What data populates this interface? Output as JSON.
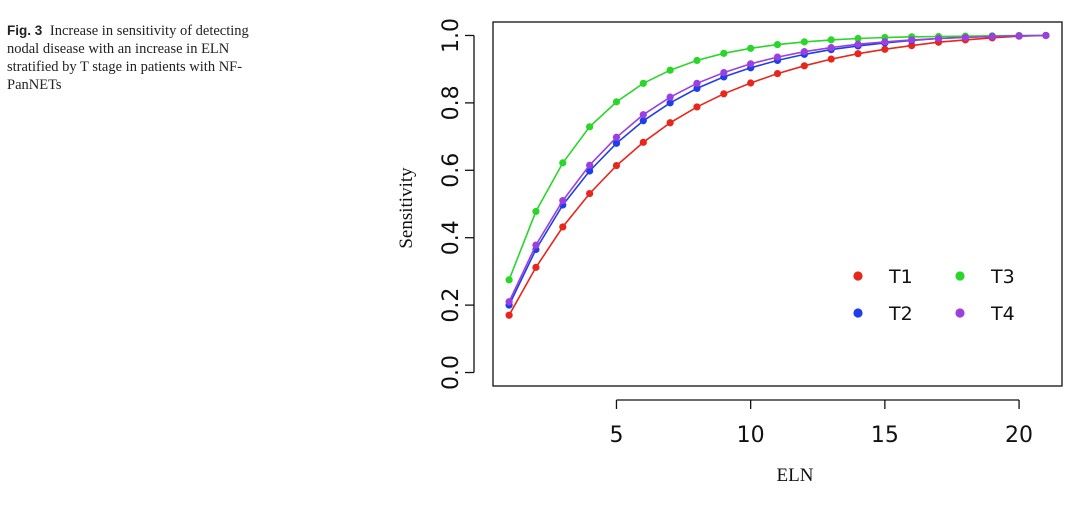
{
  "caption": {
    "label": "Fig. 3",
    "text": "Increase in sensitivity of detecting nodal disease with an increase in ELN stratified by T stage in patients with NF-PanNETs"
  },
  "chart_data": {
    "type": "line",
    "title": "",
    "xlabel": "ELN",
    "ylabel": "Sensitivity",
    "xlim": [
      0.4,
      21.6
    ],
    "ylim": [
      -0.04,
      1.04
    ],
    "xticks": [
      5,
      10,
      15,
      20
    ],
    "yticks": [
      0.0,
      0.2,
      0.4,
      0.6,
      0.8,
      1.0
    ],
    "ytick_labels": [
      "0.0",
      "0.2",
      "0.4",
      "0.6",
      "0.8",
      "1.0"
    ],
    "grid": false,
    "legend_position": "bottom-right",
    "x": [
      1,
      2,
      3,
      4,
      5,
      6,
      7,
      8,
      9,
      10,
      11,
      12,
      13,
      14,
      15,
      16,
      17,
      18,
      19,
      20,
      21
    ],
    "series": [
      {
        "name": "T1",
        "color": "#e8261b",
        "values": [
          0.17,
          0.312,
          0.432,
          0.531,
          0.614,
          0.683,
          0.741,
          0.788,
          0.827,
          0.859,
          0.887,
          0.91,
          0.93,
          0.946,
          0.959,
          0.97,
          0.98,
          0.987,
          0.993,
          0.998,
          1.0
        ]
      },
      {
        "name": "T2",
        "color": "#1f3ee8",
        "values": [
          0.2,
          0.365,
          0.497,
          0.598,
          0.68,
          0.747,
          0.8,
          0.843,
          0.877,
          0.904,
          0.926,
          0.944,
          0.958,
          0.969,
          0.978,
          0.985,
          0.991,
          0.995,
          0.998,
          0.999,
          1.0
        ]
      },
      {
        "name": "T3",
        "color": "#2ad62a",
        "values": [
          0.275,
          0.478,
          0.622,
          0.729,
          0.803,
          0.858,
          0.897,
          0.926,
          0.947,
          0.962,
          0.973,
          0.981,
          0.987,
          0.991,
          0.994,
          0.996,
          0.997,
          0.998,
          0.999,
          1.0,
          1.0
        ]
      },
      {
        "name": "T4",
        "color": "#9b3fe0",
        "values": [
          0.21,
          0.378,
          0.51,
          0.615,
          0.698,
          0.765,
          0.817,
          0.858,
          0.89,
          0.916,
          0.936,
          0.952,
          0.964,
          0.974,
          0.981,
          0.987,
          0.991,
          0.994,
          0.997,
          0.999,
          1.0
        ]
      }
    ]
  }
}
